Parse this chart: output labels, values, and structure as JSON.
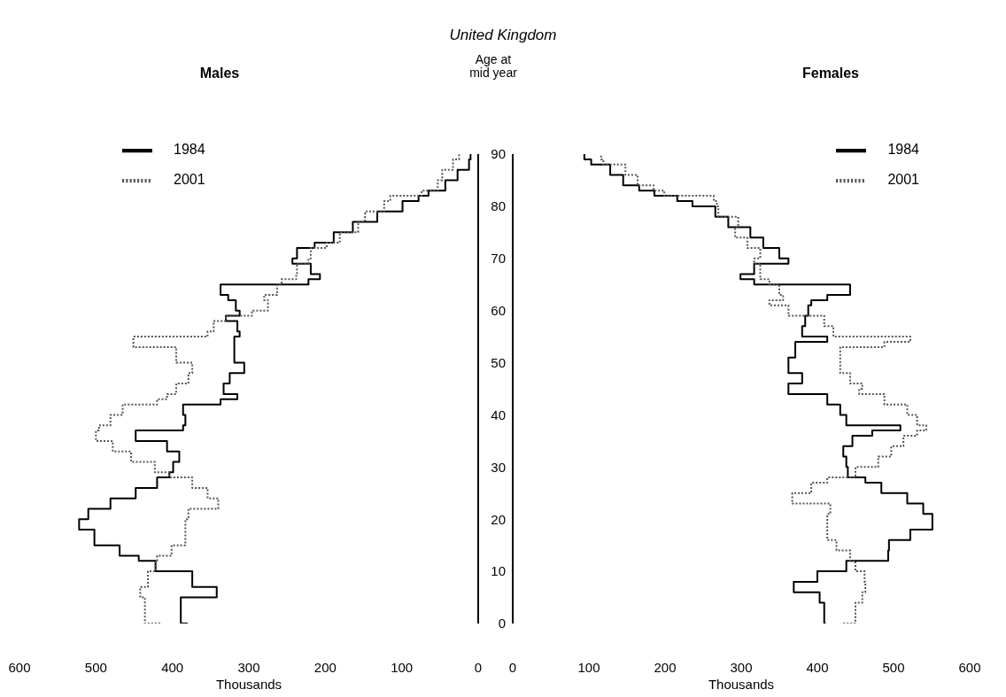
{
  "chart_data": [
    {
      "type": "step",
      "title": "United Kingdom",
      "subtitle": "Males",
      "xlabel": "Thousands",
      "orientation": "horizontal",
      "x": [
        0,
        5,
        7,
        10,
        12,
        13,
        15,
        18,
        20,
        22,
        24,
        26,
        28,
        29,
        31,
        33,
        35,
        37,
        38,
        40,
        42,
        43,
        44,
        46,
        48,
        50,
        53,
        55,
        56,
        58,
        59,
        60,
        62,
        63,
        65,
        66,
        67,
        69,
        70,
        72,
        73,
        75,
        77,
        79,
        81,
        82,
        83,
        85,
        87,
        89,
        90
      ],
      "series": [
        {
          "name": "1984",
          "color": "#000000",
          "line_style": "solid",
          "values": [
            380,
            389,
            342,
            374,
            422,
            444,
            469,
            502,
            522,
            510,
            481,
            448,
            420,
            404,
            399,
            391,
            407,
            448,
            386,
            383,
            386,
            337,
            315,
            333,
            325,
            306,
            319,
            319,
            312,
            315,
            330,
            312,
            317,
            327,
            337,
            222,
            207,
            219,
            243,
            237,
            214,
            189,
            164,
            132,
            99,
            78,
            65,
            43,
            27,
            12,
            10
          ]
        },
        {
          "name": "2001",
          "color": "#555555",
          "line_style": "dotted",
          "values": [
            416,
            436,
            442,
            432,
            422,
            420,
            401,
            383,
            383,
            379,
            340,
            354,
            374,
            404,
            423,
            454,
            478,
            500,
            496,
            481,
            465,
            420,
            407,
            395,
            379,
            374,
            395,
            451,
            354,
            346,
            330,
            296,
            275,
            280,
            263,
            257,
            238,
            237,
            222,
            219,
            198,
            181,
            157,
            148,
            123,
            115,
            74,
            53,
            47,
            33,
            25
          ]
        }
      ],
      "xlim": [
        600,
        0
      ],
      "xticks": [
        600,
        500,
        400,
        300,
        200,
        100,
        0
      ],
      "ylim": [
        0,
        90
      ],
      "yticks": [
        0,
        10,
        20,
        30,
        40,
        50,
        60,
        70,
        80,
        90
      ],
      "tick_labels": "x",
      "grid": false,
      "legend": "top left"
    },
    {
      "type": "step",
      "subtitle": "Females",
      "xlabel": "Thousands",
      "ylabel": "Age at mid year",
      "orientation": "horizontal",
      "x": [
        0,
        4,
        6,
        8,
        10,
        12,
        14,
        16,
        18,
        21,
        23,
        25,
        27,
        28,
        30,
        32,
        34,
        36,
        37,
        38,
        40,
        42,
        44,
        45,
        46,
        48,
        51,
        53,
        54,
        55,
        57,
        59,
        61,
        62,
        63,
        65,
        66,
        67,
        69,
        70,
        72,
        74,
        76,
        78,
        80,
        81,
        82,
        83,
        84,
        86,
        88,
        89,
        90
      ],
      "series": [
        {
          "name": "1984",
          "color": "#000000",
          "line_style": "solid",
          "values": [
            411,
            409,
            403,
            369,
            400,
            438,
            493,
            494,
            522,
            551,
            539,
            518,
            484,
            463,
            440,
            438,
            434,
            446,
            472,
            509,
            438,
            430,
            413,
            362,
            362,
            380,
            362,
            371,
            371,
            413,
            380,
            384,
            388,
            392,
            413,
            443,
            317,
            299,
            317,
            362,
            350,
            329,
            312,
            283,
            266,
            236,
            216,
            186,
            166,
            145,
            128,
            103,
            94
          ]
        },
        {
          "name": "2001",
          "color": "#555555",
          "line_style": "dotted",
          "values": [
            434,
            450,
            459,
            463,
            462,
            450,
            443,
            425,
            413,
            413,
            417,
            367,
            392,
            413,
            450,
            480,
            497,
            513,
            531,
            543,
            531,
            518,
            488,
            455,
            459,
            443,
            430,
            430,
            488,
            522,
            421,
            409,
            362,
            337,
            355,
            350,
            337,
            325,
            325,
            317,
            325,
            308,
            292,
            296,
            270,
            268,
            264,
            199,
            185,
            164,
            148,
            119,
            116
          ]
        }
      ],
      "xlim": [
        0,
        600
      ],
      "xticks": [
        0,
        100,
        200,
        300,
        400,
        500,
        600
      ],
      "ylim": [
        0,
        90
      ],
      "yticks": [
        0,
        10,
        20,
        30,
        40,
        50,
        60,
        70,
        80,
        90
      ],
      "grid": false,
      "legend": "top right"
    }
  ]
}
